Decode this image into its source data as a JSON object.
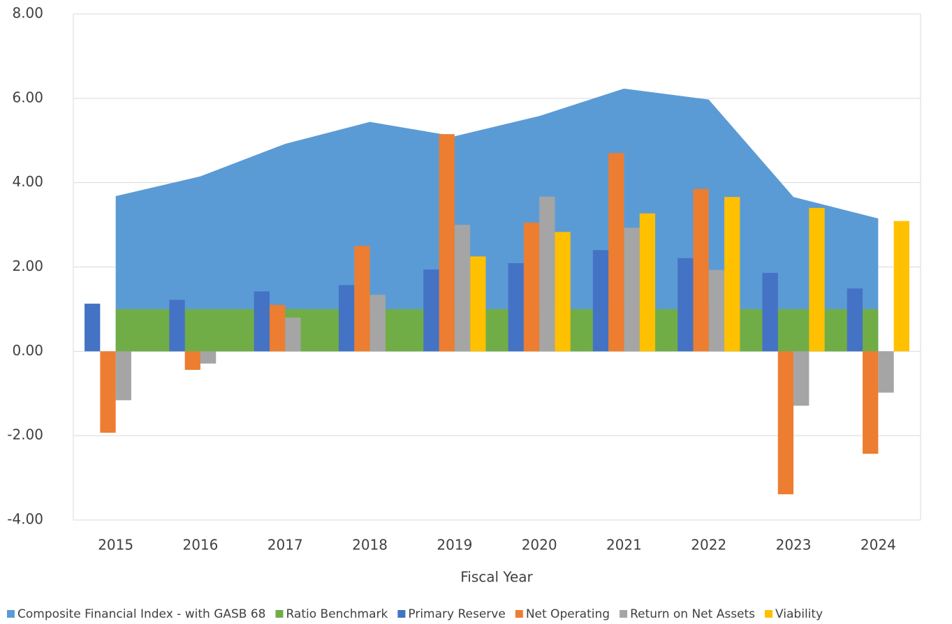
{
  "chart_data": {
    "type": "bar",
    "x_label": "Fiscal Year",
    "categories": [
      "2015",
      "2016",
      "2017",
      "2018",
      "2019",
      "2020",
      "2021",
      "2022",
      "2023",
      "2024"
    ],
    "series": [
      {
        "name": "Composite Financial Index - with GASB 68",
        "type": "area",
        "color": "#5b9bd5",
        "values": [
          3.68,
          4.15,
          4.92,
          5.44,
          5.1,
          5.58,
          6.23,
          5.97,
          3.66,
          3.15
        ]
      },
      {
        "name": "Ratio Benchmark",
        "type": "area",
        "color": "#70ad47",
        "values": [
          1,
          1,
          1,
          1,
          1,
          1,
          1,
          1,
          1,
          1
        ]
      },
      {
        "name": "Primary Reserve",
        "type": "bar",
        "color": "#4472c4",
        "values": [
          1.13,
          1.22,
          1.42,
          1.57,
          1.94,
          2.09,
          2.4,
          2.21,
          1.86,
          1.49
        ]
      },
      {
        "name": "Net Operating",
        "type": "bar",
        "color": "#ed7d31",
        "values": [
          -1.93,
          -0.44,
          1.1,
          2.5,
          5.15,
          3.05,
          4.7,
          3.85,
          -3.39,
          -2.43
        ]
      },
      {
        "name": "Return on Net Assets",
        "type": "bar",
        "color": "#a5a5a5",
        "values": [
          -1.16,
          -0.29,
          0.8,
          1.34,
          3.0,
          3.67,
          2.93,
          1.93,
          -1.29,
          -0.98
        ]
      },
      {
        "name": "Viability",
        "type": "bar",
        "color": "#ffc000",
        "values": [
          null,
          null,
          null,
          null,
          2.25,
          2.83,
          3.27,
          3.66,
          3.4,
          3.09
        ]
      }
    ],
    "ylim": [
      -4,
      8
    ],
    "yticks": [
      {
        "value": -4,
        "label": "-4.00"
      },
      {
        "value": -2,
        "label": "-2.00"
      },
      {
        "value": 0,
        "label": "0.00"
      },
      {
        "value": 2,
        "label": "2.00"
      },
      {
        "value": 4,
        "label": "4.00"
      },
      {
        "value": 6,
        "label": "6.00"
      },
      {
        "value": 8,
        "label": "8.00"
      }
    ],
    "grid": true,
    "legend": "bottom"
  }
}
